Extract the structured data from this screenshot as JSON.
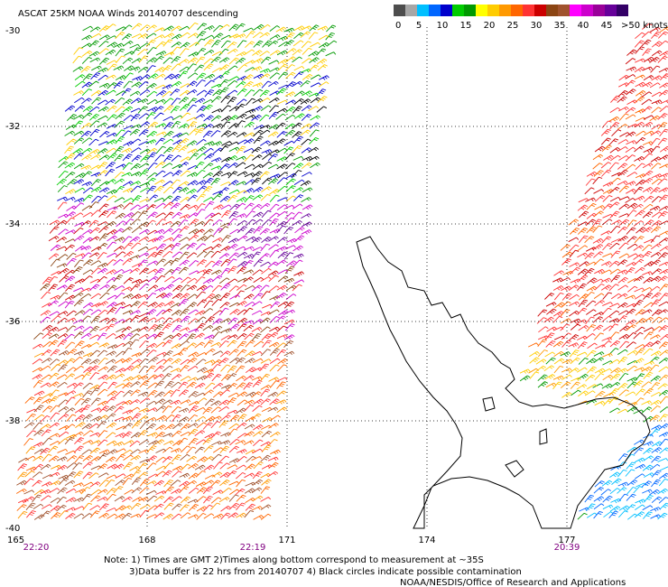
{
  "header": {
    "title": "ASCAT 25KM NOAA Winds 20140707 descending"
  },
  "colorbar": {
    "labels": [
      "0",
      "5",
      "10",
      "15",
      "20",
      "25",
      "30",
      "35",
      "40",
      "45",
      ">50 knots"
    ],
    "colors": [
      "#4d4d4d",
      "#a6a6a6",
      "#00bfff",
      "#0066ff",
      "#0000cc",
      "#00cc00",
      "#009900",
      "#ffff00",
      "#ffcc00",
      "#ff9900",
      "#ff6600",
      "#ff3333",
      "#cc0000",
      "#8b4513",
      "#a0522d",
      "#ff00ff",
      "#cc00cc",
      "#990099",
      "#660099",
      "#330066"
    ]
  },
  "map": {
    "lat_labels": [
      "-30",
      "-32",
      "-34",
      "-36",
      "-38",
      "-40"
    ],
    "lon_labels": [
      "165",
      "168",
      "171",
      "174",
      "177"
    ],
    "time_labels": [
      "22:20",
      "22:19",
      "20:39"
    ]
  },
  "notes": [
    "Note: 1) Times are GMT 2)Times along bottom correspond to measurement at ~35S",
    "3)Data buffer is 22 hrs from 20140707 4) Black circles indicate possible contamination",
    "NOAA/NESDIS/Office of Research and Applications"
  ]
}
